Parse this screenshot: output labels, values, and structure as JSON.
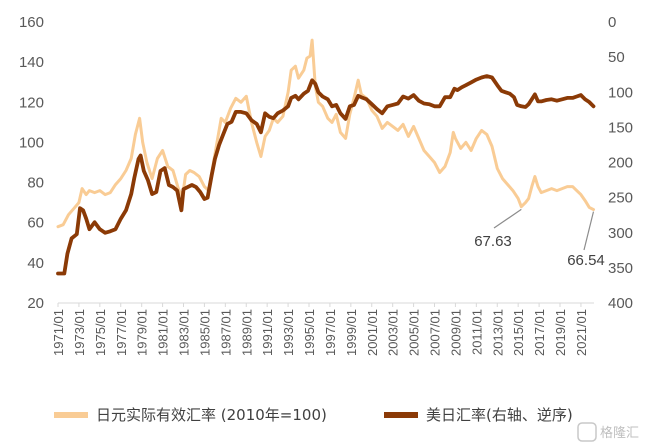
{
  "chart_data": {
    "type": "line",
    "x_labels": [
      "1971/01",
      "1973/01",
      "1975/01",
      "1977/01",
      "1979/01",
      "1981/01",
      "1983/01",
      "1985/01",
      "1987/01",
      "1989/01",
      "1991/01",
      "1993/01",
      "1995/01",
      "1997/01",
      "1999/01",
      "2001/01",
      "2003/01",
      "2005/01",
      "2007/01",
      "2009/01",
      "2011/01",
      "2013/01",
      "2015/01",
      "2017/01",
      "2019/01",
      "2021/01"
    ],
    "y_left": {
      "min": 20,
      "max": 160,
      "ticks": [
        160,
        140,
        120,
        100,
        80,
        60,
        40,
        20
      ]
    },
    "y_right": {
      "min": 0,
      "max": 400,
      "reversed": true,
      "ticks": [
        0,
        50,
        100,
        150,
        200,
        250,
        300,
        350,
        400
      ]
    },
    "series": [
      {
        "name": "日元实际有效汇率 (2010年=100)",
        "axis": "left",
        "color": "#f9cc95",
        "points": [
          [
            1971.0,
            58
          ],
          [
            1971.5,
            59
          ],
          [
            1972.0,
            64
          ],
          [
            1972.5,
            67
          ],
          [
            1973.0,
            70
          ],
          [
            1973.3,
            77
          ],
          [
            1973.7,
            74
          ],
          [
            1974.0,
            76
          ],
          [
            1974.5,
            75
          ],
          [
            1975.0,
            76
          ],
          [
            1975.5,
            74
          ],
          [
            1976.0,
            75
          ],
          [
            1976.5,
            79
          ],
          [
            1977.0,
            82
          ],
          [
            1977.5,
            86
          ],
          [
            1978.0,
            92
          ],
          [
            1978.4,
            104
          ],
          [
            1978.8,
            112
          ],
          [
            1979.1,
            100
          ],
          [
            1979.5,
            90
          ],
          [
            1980.0,
            82
          ],
          [
            1980.5,
            92
          ],
          [
            1981.0,
            96
          ],
          [
            1981.5,
            88
          ],
          [
            1982.0,
            86
          ],
          [
            1982.5,
            77
          ],
          [
            1982.9,
            73
          ],
          [
            1983.2,
            84
          ],
          [
            1983.6,
            86
          ],
          [
            1984.0,
            85
          ],
          [
            1984.5,
            83
          ],
          [
            1985.0,
            78
          ],
          [
            1985.4,
            76
          ],
          [
            1985.8,
            88
          ],
          [
            1986.2,
            100
          ],
          [
            1986.6,
            112
          ],
          [
            1987.0,
            110
          ],
          [
            1987.5,
            117
          ],
          [
            1988.0,
            122
          ],
          [
            1988.5,
            120
          ],
          [
            1989.0,
            123
          ],
          [
            1989.5,
            110
          ],
          [
            1990.0,
            100
          ],
          [
            1990.4,
            93
          ],
          [
            1990.8,
            103
          ],
          [
            1991.2,
            106
          ],
          [
            1991.6,
            112
          ],
          [
            1992.0,
            110
          ],
          [
            1992.5,
            113
          ],
          [
            1993.0,
            125
          ],
          [
            1993.3,
            136
          ],
          [
            1993.7,
            138
          ],
          [
            1994.0,
            132
          ],
          [
            1994.5,
            136
          ],
          [
            1994.8,
            142
          ],
          [
            1995.1,
            143
          ],
          [
            1995.3,
            151
          ],
          [
            1995.6,
            128
          ],
          [
            1995.9,
            120
          ],
          [
            1996.3,
            118
          ],
          [
            1996.8,
            112
          ],
          [
            1997.2,
            110
          ],
          [
            1997.6,
            114
          ],
          [
            1998.0,
            105
          ],
          [
            1998.5,
            102
          ],
          [
            1998.9,
            114
          ],
          [
            1999.3,
            122
          ],
          [
            1999.7,
            131
          ],
          [
            2000.0,
            124
          ],
          [
            2000.5,
            122
          ],
          [
            2001.0,
            116
          ],
          [
            2001.5,
            113
          ],
          [
            2002.0,
            107
          ],
          [
            2002.5,
            110
          ],
          [
            2003.0,
            108
          ],
          [
            2003.5,
            106
          ],
          [
            2004.0,
            109
          ],
          [
            2004.5,
            103
          ],
          [
            2005.0,
            108
          ],
          [
            2005.5,
            102
          ],
          [
            2006.0,
            96
          ],
          [
            2006.5,
            93
          ],
          [
            2007.0,
            90
          ],
          [
            2007.5,
            85
          ],
          [
            2008.0,
            88
          ],
          [
            2008.5,
            95
          ],
          [
            2008.8,
            105
          ],
          [
            2009.0,
            102
          ],
          [
            2009.5,
            97
          ],
          [
            2010.0,
            100
          ],
          [
            2010.5,
            96
          ],
          [
            2011.0,
            102
          ],
          [
            2011.5,
            106
          ],
          [
            2012.0,
            104
          ],
          [
            2012.5,
            98
          ],
          [
            2013.0,
            87
          ],
          [
            2013.5,
            82
          ],
          [
            2014.0,
            79
          ],
          [
            2014.5,
            76
          ],
          [
            2015.0,
            72
          ],
          [
            2015.3,
            68
          ],
          [
            2015.7,
            70
          ],
          [
            2016.0,
            72
          ],
          [
            2016.3,
            78
          ],
          [
            2016.6,
            83
          ],
          [
            2016.9,
            78
          ],
          [
            2017.2,
            75
          ],
          [
            2017.7,
            76
          ],
          [
            2018.2,
            77
          ],
          [
            2018.7,
            76
          ],
          [
            2019.2,
            77
          ],
          [
            2019.7,
            78
          ],
          [
            2020.2,
            78
          ],
          [
            2020.6,
            76
          ],
          [
            2021.0,
            74
          ],
          [
            2021.4,
            71
          ],
          [
            2021.8,
            67.63
          ],
          [
            2022.2,
            66.54
          ]
        ]
      },
      {
        "name": "美日汇率(右轴、逆序)",
        "axis": "right",
        "color": "#8b3a06",
        "points": [
          [
            1971.0,
            358
          ],
          [
            1971.6,
            358
          ],
          [
            1971.9,
            330
          ],
          [
            1972.3,
            308
          ],
          [
            1972.8,
            302
          ],
          [
            1973.1,
            265
          ],
          [
            1973.4,
            268
          ],
          [
            1973.7,
            280
          ],
          [
            1974.0,
            295
          ],
          [
            1974.5,
            285
          ],
          [
            1975.0,
            295
          ],
          [
            1975.5,
            300
          ],
          [
            1976.0,
            298
          ],
          [
            1976.5,
            295
          ],
          [
            1977.0,
            280
          ],
          [
            1977.5,
            268
          ],
          [
            1978.0,
            245
          ],
          [
            1978.3,
            222
          ],
          [
            1978.7,
            195
          ],
          [
            1978.9,
            190
          ],
          [
            1979.2,
            212
          ],
          [
            1979.6,
            225
          ],
          [
            1980.0,
            245
          ],
          [
            1980.4,
            242
          ],
          [
            1980.8,
            212
          ],
          [
            1981.2,
            208
          ],
          [
            1981.6,
            232
          ],
          [
            1982.0,
            235
          ],
          [
            1982.4,
            240
          ],
          [
            1982.8,
            268
          ],
          [
            1983.0,
            238
          ],
          [
            1983.4,
            235
          ],
          [
            1983.8,
            232
          ],
          [
            1984.2,
            235
          ],
          [
            1984.6,
            242
          ],
          [
            1985.0,
            252
          ],
          [
            1985.3,
            250
          ],
          [
            1985.7,
            218
          ],
          [
            1986.0,
            195
          ],
          [
            1986.4,
            175
          ],
          [
            1986.8,
            160
          ],
          [
            1987.2,
            145
          ],
          [
            1987.6,
            142
          ],
          [
            1988.0,
            128
          ],
          [
            1988.5,
            128
          ],
          [
            1989.0,
            130
          ],
          [
            1989.5,
            140
          ],
          [
            1990.0,
            145
          ],
          [
            1990.4,
            157
          ],
          [
            1990.8,
            130
          ],
          [
            1991.2,
            135
          ],
          [
            1991.6,
            137
          ],
          [
            1992.0,
            130
          ],
          [
            1992.5,
            126
          ],
          [
            1993.0,
            120
          ],
          [
            1993.3,
            108
          ],
          [
            1993.7,
            105
          ],
          [
            1994.0,
            110
          ],
          [
            1994.5,
            102
          ],
          [
            1994.9,
            98
          ],
          [
            1995.3,
            83
          ],
          [
            1995.6,
            88
          ],
          [
            1995.9,
            100
          ],
          [
            1996.3,
            106
          ],
          [
            1996.8,
            110
          ],
          [
            1997.2,
            120
          ],
          [
            1997.6,
            118
          ],
          [
            1998.0,
            130
          ],
          [
            1998.5,
            138
          ],
          [
            1998.9,
            120
          ],
          [
            1999.3,
            118
          ],
          [
            1999.7,
            105
          ],
          [
            2000.0,
            107
          ],
          [
            2000.5,
            110
          ],
          [
            2001.0,
            117
          ],
          [
            2001.5,
            124
          ],
          [
            2002.0,
            130
          ],
          [
            2002.5,
            120
          ],
          [
            2003.0,
            118
          ],
          [
            2003.5,
            116
          ],
          [
            2004.0,
            106
          ],
          [
            2004.5,
            109
          ],
          [
            2005.0,
            104
          ],
          [
            2005.5,
            112
          ],
          [
            2006.0,
            116
          ],
          [
            2006.5,
            117
          ],
          [
            2007.0,
            120
          ],
          [
            2007.5,
            120
          ],
          [
            2008.0,
            107
          ],
          [
            2008.5,
            107
          ],
          [
            2008.9,
            95
          ],
          [
            2009.2,
            97
          ],
          [
            2009.6,
            93
          ],
          [
            2010.0,
            90
          ],
          [
            2010.5,
            86
          ],
          [
            2011.0,
            82
          ],
          [
            2011.5,
            79
          ],
          [
            2012.0,
            77
          ],
          [
            2012.5,
            79
          ],
          [
            2013.0,
            90
          ],
          [
            2013.4,
            98
          ],
          [
            2013.8,
            100
          ],
          [
            2014.2,
            102
          ],
          [
            2014.6,
            107
          ],
          [
            2014.9,
            118
          ],
          [
            2015.3,
            120
          ],
          [
            2015.7,
            121
          ],
          [
            2016.0,
            117
          ],
          [
            2016.3,
            110
          ],
          [
            2016.6,
            103
          ],
          [
            2016.9,
            113
          ],
          [
            2017.2,
            113
          ],
          [
            2017.7,
            111
          ],
          [
            2018.2,
            110
          ],
          [
            2018.7,
            112
          ],
          [
            2019.2,
            110
          ],
          [
            2019.7,
            108
          ],
          [
            2020.2,
            108
          ],
          [
            2020.6,
            106
          ],
          [
            2021.0,
            104
          ],
          [
            2021.4,
            110
          ],
          [
            2021.8,
            114
          ],
          [
            2022.2,
            120
          ]
        ]
      }
    ],
    "annotations": [
      {
        "text": "67.63",
        "x": 2015.3,
        "y": 67.63
      },
      {
        "text": "66.54",
        "x": 2022.2,
        "y": 66.54
      }
    ],
    "legend_position": "bottom"
  },
  "watermark": "格隆汇"
}
